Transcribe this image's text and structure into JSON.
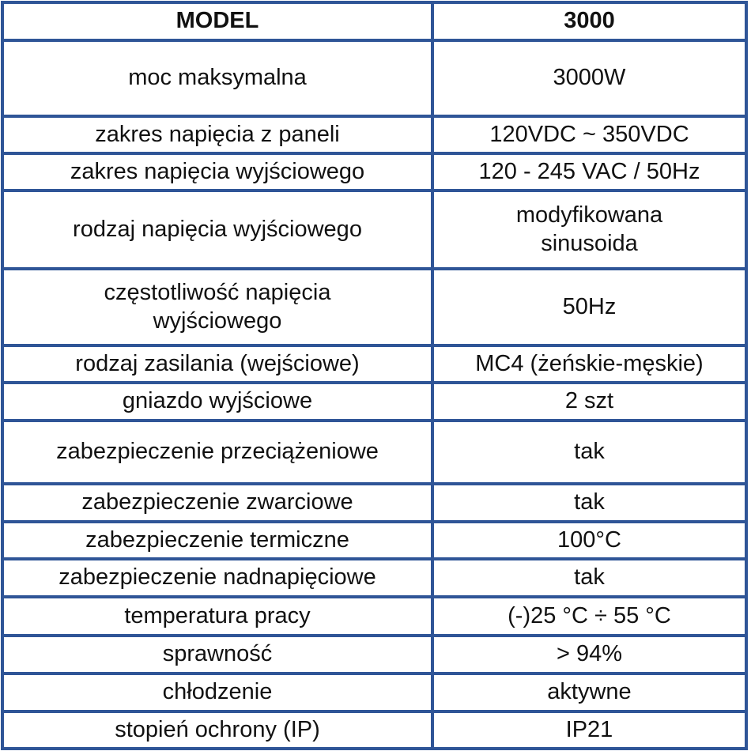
{
  "header": {
    "label": "MODEL",
    "value": "3000"
  },
  "rows": [
    {
      "label": "moc maksymalna",
      "value": "3000W"
    },
    {
      "label": "zakres napięcia z paneli",
      "value": "120VDC ~ 350VDC"
    },
    {
      "label": "zakres napięcia wyjściowego",
      "value": "120 - 245 VAC / 50Hz"
    },
    {
      "label": "rodzaj napięcia wyjściowego",
      "value": "modyfikowana sinusoida"
    },
    {
      "label": "częstotliwość napięcia wyjściowego",
      "value": "50Hz"
    },
    {
      "label": "rodzaj zasilania (wejściowe)",
      "value": "MC4 (żeńskie-męskie)"
    },
    {
      "label": "gniazdo wyjściowe",
      "value": "2 szt"
    },
    {
      "label": "zabezpieczenie przeciążeniowe",
      "value": "tak"
    },
    {
      "label": "zabezpieczenie zwarciowe",
      "value": "tak"
    },
    {
      "label": "zabezpieczenie termiczne",
      "value": "100°C"
    },
    {
      "label": "zabezpieczenie nadnapięciowe",
      "value": "tak"
    },
    {
      "label": "temperatura pracy",
      "value": "(-)25 °C ÷ 55 °C"
    },
    {
      "label": "sprawność",
      "value": "> 94%"
    },
    {
      "label": "chłodzenie",
      "value": "aktywne"
    },
    {
      "label": "stopień ochrony (IP)",
      "value": "IP21"
    }
  ],
  "colors": {
    "border": "#2f5597"
  }
}
